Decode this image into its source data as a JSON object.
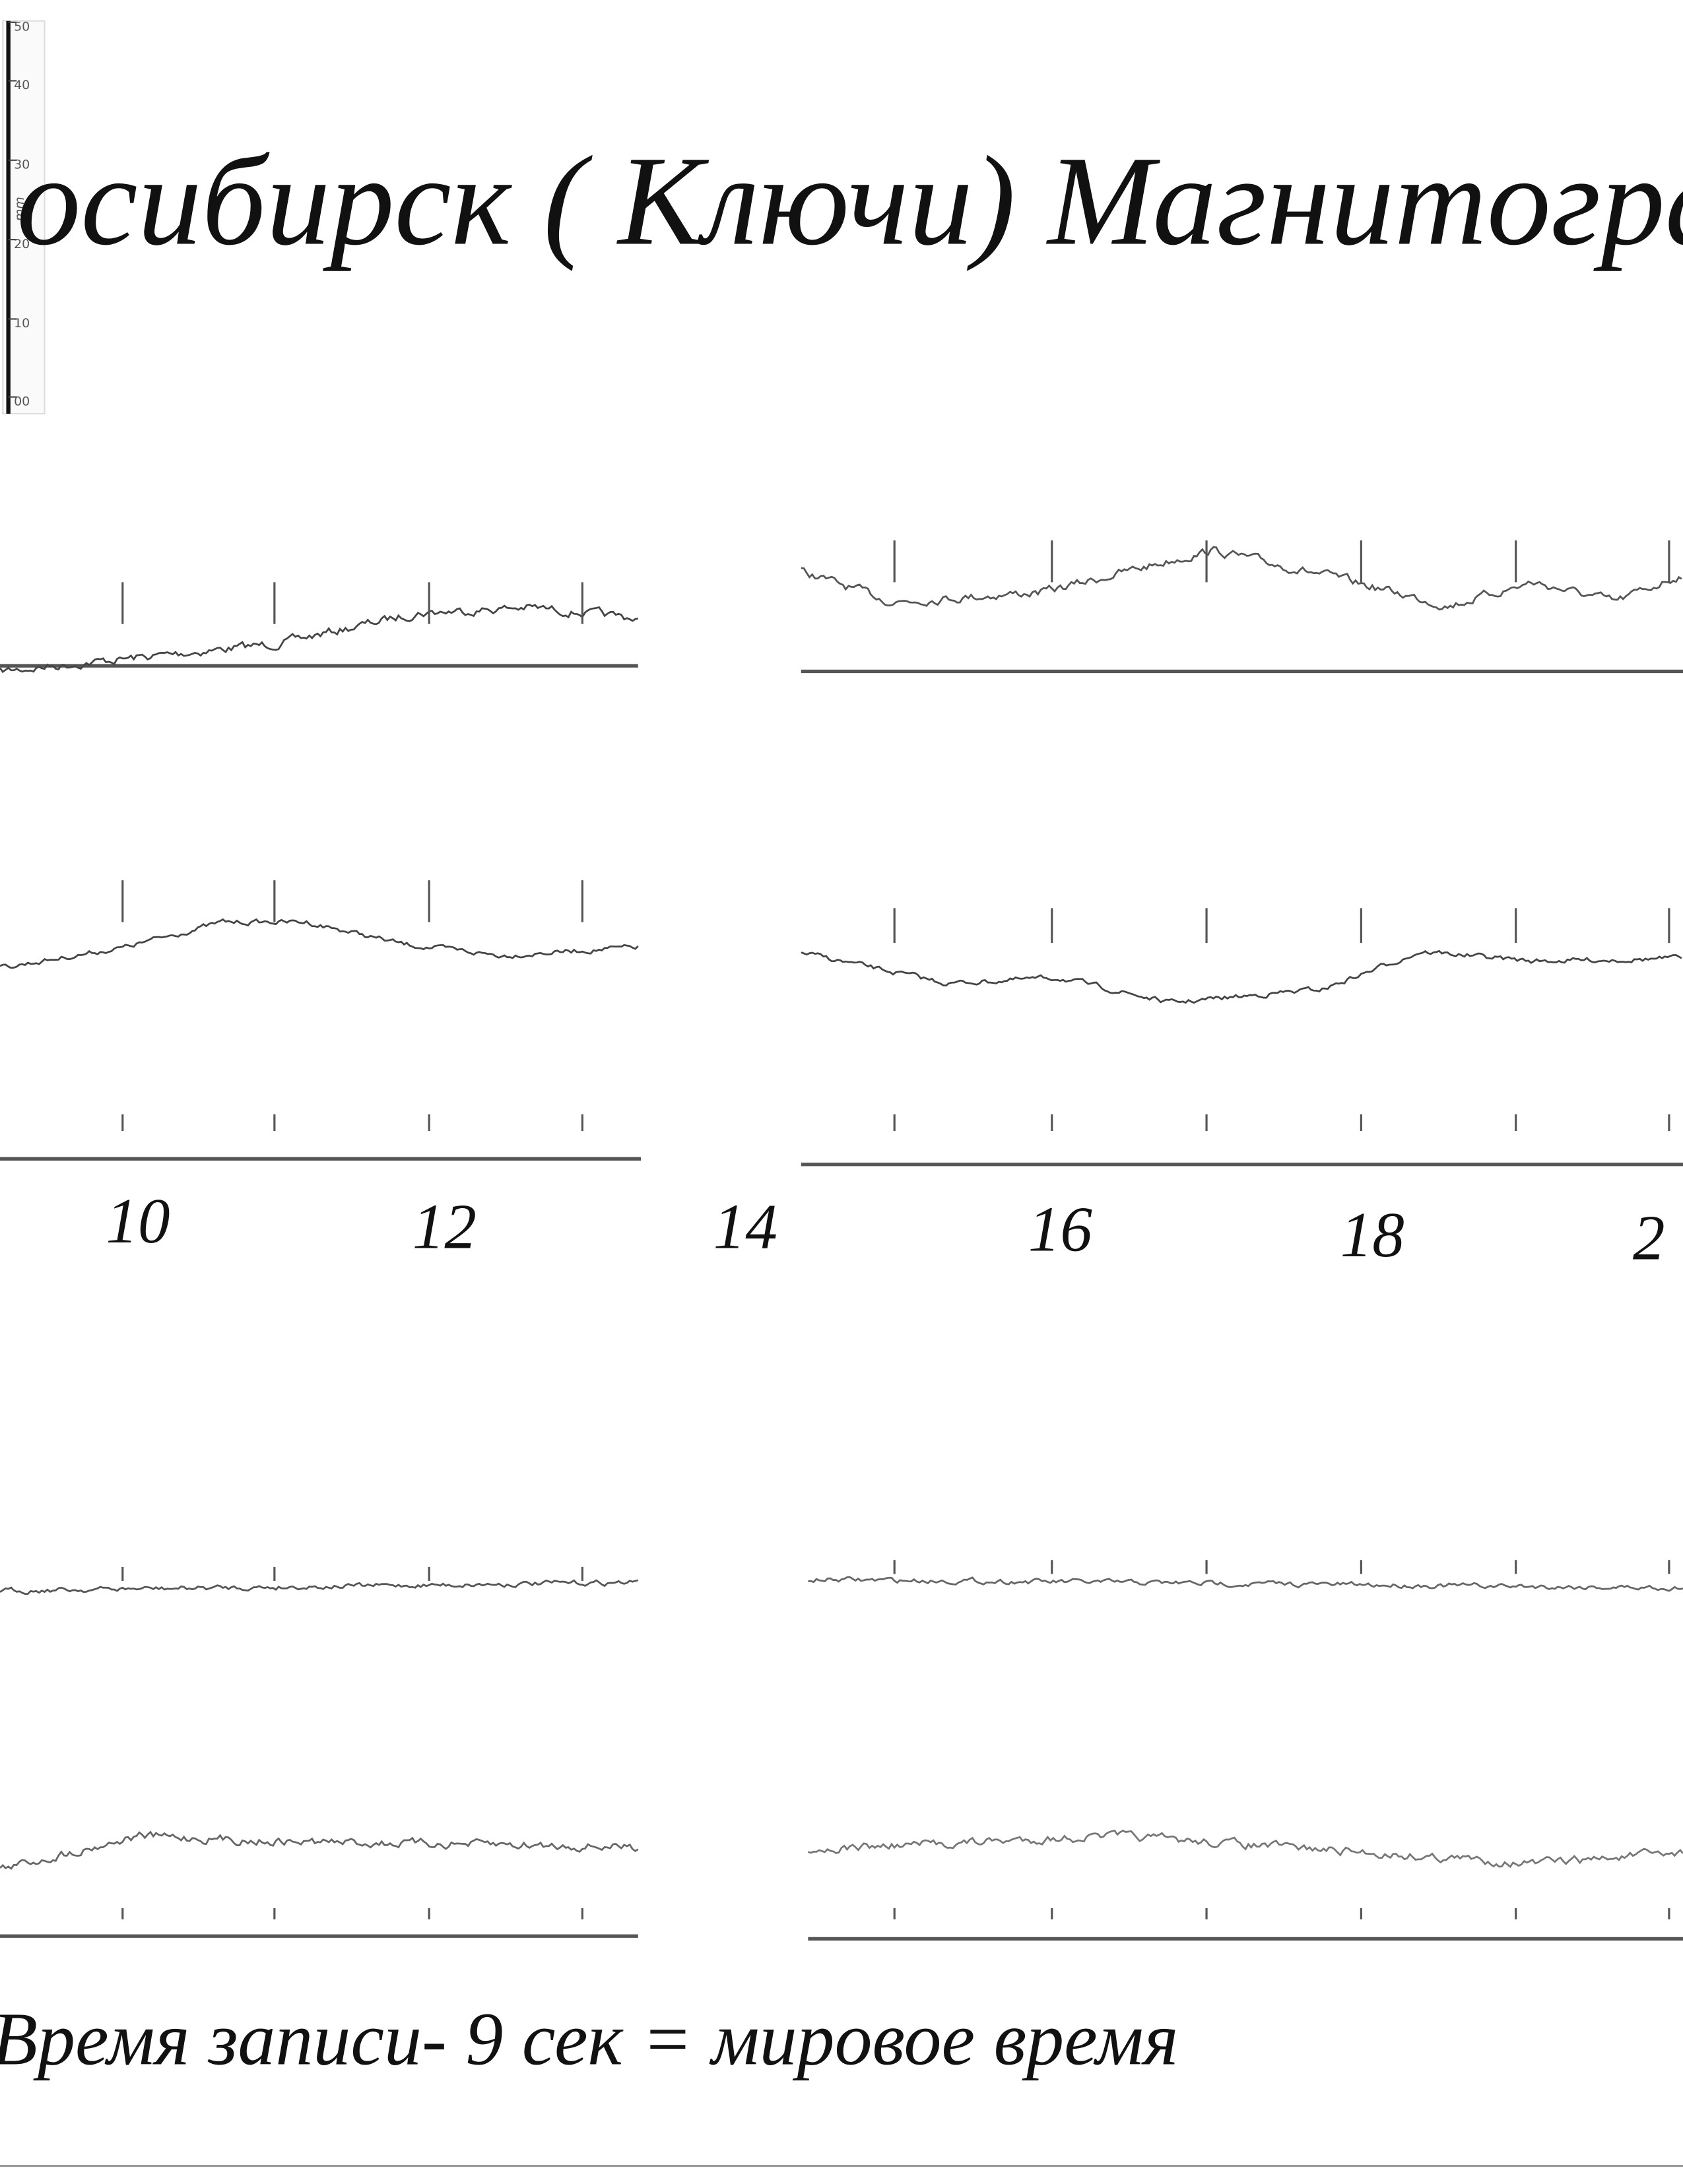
{
  "ruler": {
    "ticks": [
      "50",
      "40",
      "30",
      "20",
      "10",
      "00"
    ],
    "unit": "mm"
  },
  "title": "осибирск ( Ключи) Магнитограф Бод",
  "hour_labels": [
    "10",
    "12",
    "14",
    "16",
    "18",
    "2"
  ],
  "footer": "Время  записи- 9 сек = мировое время"
}
